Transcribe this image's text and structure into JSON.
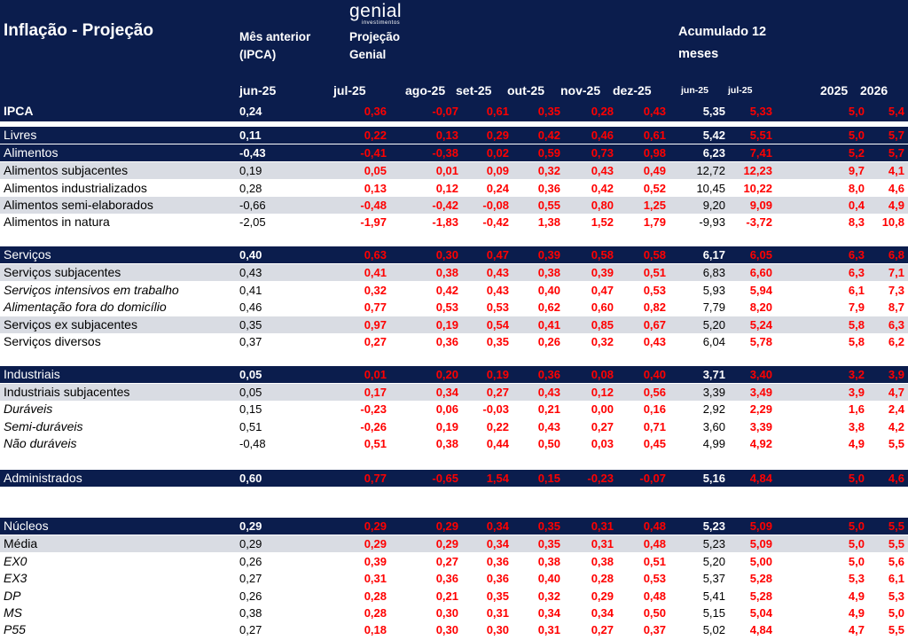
{
  "header": {
    "title": "Inflação - Projeção",
    "prev_line1": "Mês anterior",
    "prev_line2": "(IPCA)",
    "logo_word": "genial",
    "logo_sub": "investimentos",
    "proj_line1": "Projeção",
    "proj_line2": "Genial",
    "acc_line1": "Acumulado 12",
    "acc_line2": "meses",
    "col_prev": "jun-25",
    "col_months": [
      "jul-25",
      "ago-25",
      "set-25",
      "out-25",
      "nov-25",
      "dez-25"
    ],
    "col_acc1": "jun-25",
    "col_acc2": "jul-25",
    "col_y1": "2025",
    "col_y2": "2026"
  },
  "colors": {
    "navy": "#0b1d4d",
    "gray": "#d9dce3",
    "red": "#ff0000"
  },
  "rows": [
    {
      "style": "ipca",
      "label": "IPCA",
      "prev": "0,24",
      "months": [
        "0,36",
        "-0,07",
        "0,61",
        "0,35",
        "0,28",
        "0,43"
      ],
      "acc1": "5,35",
      "acc2": "5,33",
      "y1": "5,0",
      "y2": "5,4"
    },
    {
      "style": "band",
      "label": "Livres",
      "prev": "0,11",
      "months": [
        "0,22",
        "0,13",
        "0,29",
        "0,42",
        "0,46",
        "0,61"
      ],
      "acc1": "5,42",
      "acc2": "5,51",
      "y1": "5,0",
      "y2": "5,7"
    },
    {
      "style": "band",
      "label": "Alimentos",
      "prev": "-0,43",
      "months": [
        "-0,41",
        "-0,38",
        "0,02",
        "0,59",
        "0,73",
        "0,98"
      ],
      "acc1": "6,23",
      "acc2": "7,41",
      "y1": "5,2",
      "y2": "5,7"
    },
    {
      "style": "gray",
      "label": "Alimentos subjacentes",
      "prev": "0,19",
      "months": [
        "0,05",
        "0,01",
        "0,09",
        "0,32",
        "0,43",
        "0,49"
      ],
      "acc1": "12,72",
      "acc2": "12,23",
      "y1": "9,7",
      "y2": "4,1"
    },
    {
      "style": "white",
      "label": "Alimentos industrializados",
      "prev": "0,28",
      "months": [
        "0,13",
        "0,12",
        "0,24",
        "0,36",
        "0,42",
        "0,52"
      ],
      "acc1": "10,45",
      "acc2": "10,22",
      "y1": "8,0",
      "y2": "4,6"
    },
    {
      "style": "gray",
      "label": "Alimentos semi-elaborados",
      "prev": "-0,66",
      "months": [
        "-0,48",
        "-0,42",
        "-0,08",
        "0,55",
        "0,80",
        "1,25"
      ],
      "acc1": "9,20",
      "acc2": "9,09",
      "y1": "0,4",
      "y2": "4,9"
    },
    {
      "style": "white",
      "label": "Alimentos in natura",
      "prev": "-2,05",
      "months": [
        "-1,97",
        "-1,83",
        "-0,42",
        "1,38",
        "1,52",
        "1,79"
      ],
      "acc1": "-9,93",
      "acc2": "-3,72",
      "y1": "8,3",
      "y2": "10,8"
    },
    {
      "style": "band",
      "label": "Serviços",
      "prev": "0,40",
      "months": [
        "0,63",
        "0,30",
        "0,47",
        "0,39",
        "0,58",
        "0,58"
      ],
      "acc1": "6,17",
      "acc2": "6,05",
      "y1": "6,3",
      "y2": "6,8"
    },
    {
      "style": "gray",
      "label": "Serviços subjacentes",
      "prev": "0,43",
      "months": [
        "0,41",
        "0,38",
        "0,43",
        "0,38",
        "0,39",
        "0,51"
      ],
      "acc1": "6,83",
      "acc2": "6,60",
      "y1": "6,3",
      "y2": "7,1"
    },
    {
      "style": "white",
      "italic": true,
      "label": "Serviços intensivos em trabalho",
      "prev": "0,41",
      "months": [
        "0,32",
        "0,42",
        "0,43",
        "0,40",
        "0,47",
        "0,53"
      ],
      "acc1": "5,93",
      "acc2": "5,94",
      "y1": "6,1",
      "y2": "7,3"
    },
    {
      "style": "white",
      "italic": true,
      "label": "Alimentação fora do domicílio",
      "prev": "0,46",
      "months": [
        "0,77",
        "0,53",
        "0,53",
        "0,62",
        "0,60",
        "0,82"
      ],
      "acc1": "7,79",
      "acc2": "8,20",
      "y1": "7,9",
      "y2": "8,7"
    },
    {
      "style": "gray",
      "label": "Serviços ex subjacentes",
      "prev": "0,35",
      "months": [
        "0,97",
        "0,19",
        "0,54",
        "0,41",
        "0,85",
        "0,67"
      ],
      "acc1": "5,20",
      "acc2": "5,24",
      "y1": "5,8",
      "y2": "6,3"
    },
    {
      "style": "white",
      "label": "Serviços diversos",
      "prev": "0,37",
      "months": [
        "0,27",
        "0,36",
        "0,35",
        "0,26",
        "0,32",
        "0,43"
      ],
      "acc1": "6,04",
      "acc2": "5,78",
      "y1": "5,8",
      "y2": "6,2"
    },
    {
      "style": "band",
      "label": "Industriais",
      "prev": "0,05",
      "months": [
        "0,01",
        "0,20",
        "0,19",
        "0,36",
        "0,08",
        "0,40"
      ],
      "acc1": "3,71",
      "acc2": "3,40",
      "y1": "3,2",
      "y2": "3,9"
    },
    {
      "style": "gray",
      "label": "Industriais subjacentes",
      "prev": "0,05",
      "months": [
        "0,17",
        "0,34",
        "0,27",
        "0,43",
        "0,12",
        "0,56"
      ],
      "acc1": "3,39",
      "acc2": "3,49",
      "y1": "3,9",
      "y2": "4,7"
    },
    {
      "style": "white",
      "italic": true,
      "label": "Duráveis",
      "prev": "0,15",
      "months": [
        "-0,23",
        "0,06",
        "-0,03",
        "0,21",
        "0,00",
        "0,16"
      ],
      "acc1": "2,92",
      "acc2": "2,29",
      "y1": "1,6",
      "y2": "2,4"
    },
    {
      "style": "white",
      "italic": true,
      "label": "Semi-duráveis",
      "prev": "0,51",
      "months": [
        "-0,26",
        "0,19",
        "0,22",
        "0,43",
        "0,27",
        "0,71"
      ],
      "acc1": "3,60",
      "acc2": "3,39",
      "y1": "3,8",
      "y2": "4,2"
    },
    {
      "style": "white",
      "italic": true,
      "label": "Não duráveis",
      "prev": "-0,48",
      "months": [
        "0,51",
        "0,38",
        "0,44",
        "0,50",
        "0,03",
        "0,45"
      ],
      "acc1": "4,99",
      "acc2": "4,92",
      "y1": "4,9",
      "y2": "5,5"
    },
    {
      "style": "band",
      "label": "Administrados",
      "prev": "0,60",
      "months": [
        "0,77",
        "-0,65",
        "1,54",
        "0,15",
        "-0,23",
        "-0,07"
      ],
      "acc1": "5,16",
      "acc2": "4,84",
      "y1": "5,0",
      "y2": "4,6"
    },
    {
      "style": "band",
      "label": "Núcleos",
      "prev": "0,29",
      "months": [
        "0,29",
        "0,29",
        "0,34",
        "0,35",
        "0,31",
        "0,48"
      ],
      "acc1": "5,23",
      "acc2": "5,09",
      "y1": "5,0",
      "y2": "5,5"
    },
    {
      "style": "gray",
      "label": "Média",
      "prev": "0,29",
      "months": [
        "0,29",
        "0,29",
        "0,34",
        "0,35",
        "0,31",
        "0,48"
      ],
      "acc1": "5,23",
      "acc2": "5,09",
      "y1": "5,0",
      "y2": "5,5"
    },
    {
      "style": "white",
      "italic": true,
      "label": "EX0",
      "prev": "0,26",
      "months": [
        "0,39",
        "0,27",
        "0,36",
        "0,38",
        "0,38",
        "0,51"
      ],
      "acc1": "5,20",
      "acc2": "5,00",
      "y1": "5,0",
      "y2": "5,6"
    },
    {
      "style": "white",
      "italic": true,
      "label": "EX3",
      "prev": "0,27",
      "months": [
        "0,31",
        "0,36",
        "0,36",
        "0,40",
        "0,28",
        "0,53"
      ],
      "acc1": "5,37",
      "acc2": "5,28",
      "y1": "5,3",
      "y2": "6,1"
    },
    {
      "style": "white",
      "italic": true,
      "label": "DP",
      "prev": "0,26",
      "months": [
        "0,28",
        "0,21",
        "0,35",
        "0,32",
        "0,29",
        "0,48"
      ],
      "acc1": "5,41",
      "acc2": "5,28",
      "y1": "4,9",
      "y2": "5,3"
    },
    {
      "style": "white",
      "italic": true,
      "label": "MS",
      "prev": "0,38",
      "months": [
        "0,28",
        "0,30",
        "0,31",
        "0,34",
        "0,34",
        "0,50"
      ],
      "acc1": "5,15",
      "acc2": "5,04",
      "y1": "4,9",
      "y2": "5,0"
    },
    {
      "style": "white",
      "italic": true,
      "label": "P55",
      "prev": "0,27",
      "months": [
        "0,18",
        "0,30",
        "0,30",
        "0,31",
        "0,27",
        "0,37"
      ],
      "acc1": "5,02",
      "acc2": "4,84",
      "y1": "4,7",
      "y2": "5,5"
    }
  ]
}
